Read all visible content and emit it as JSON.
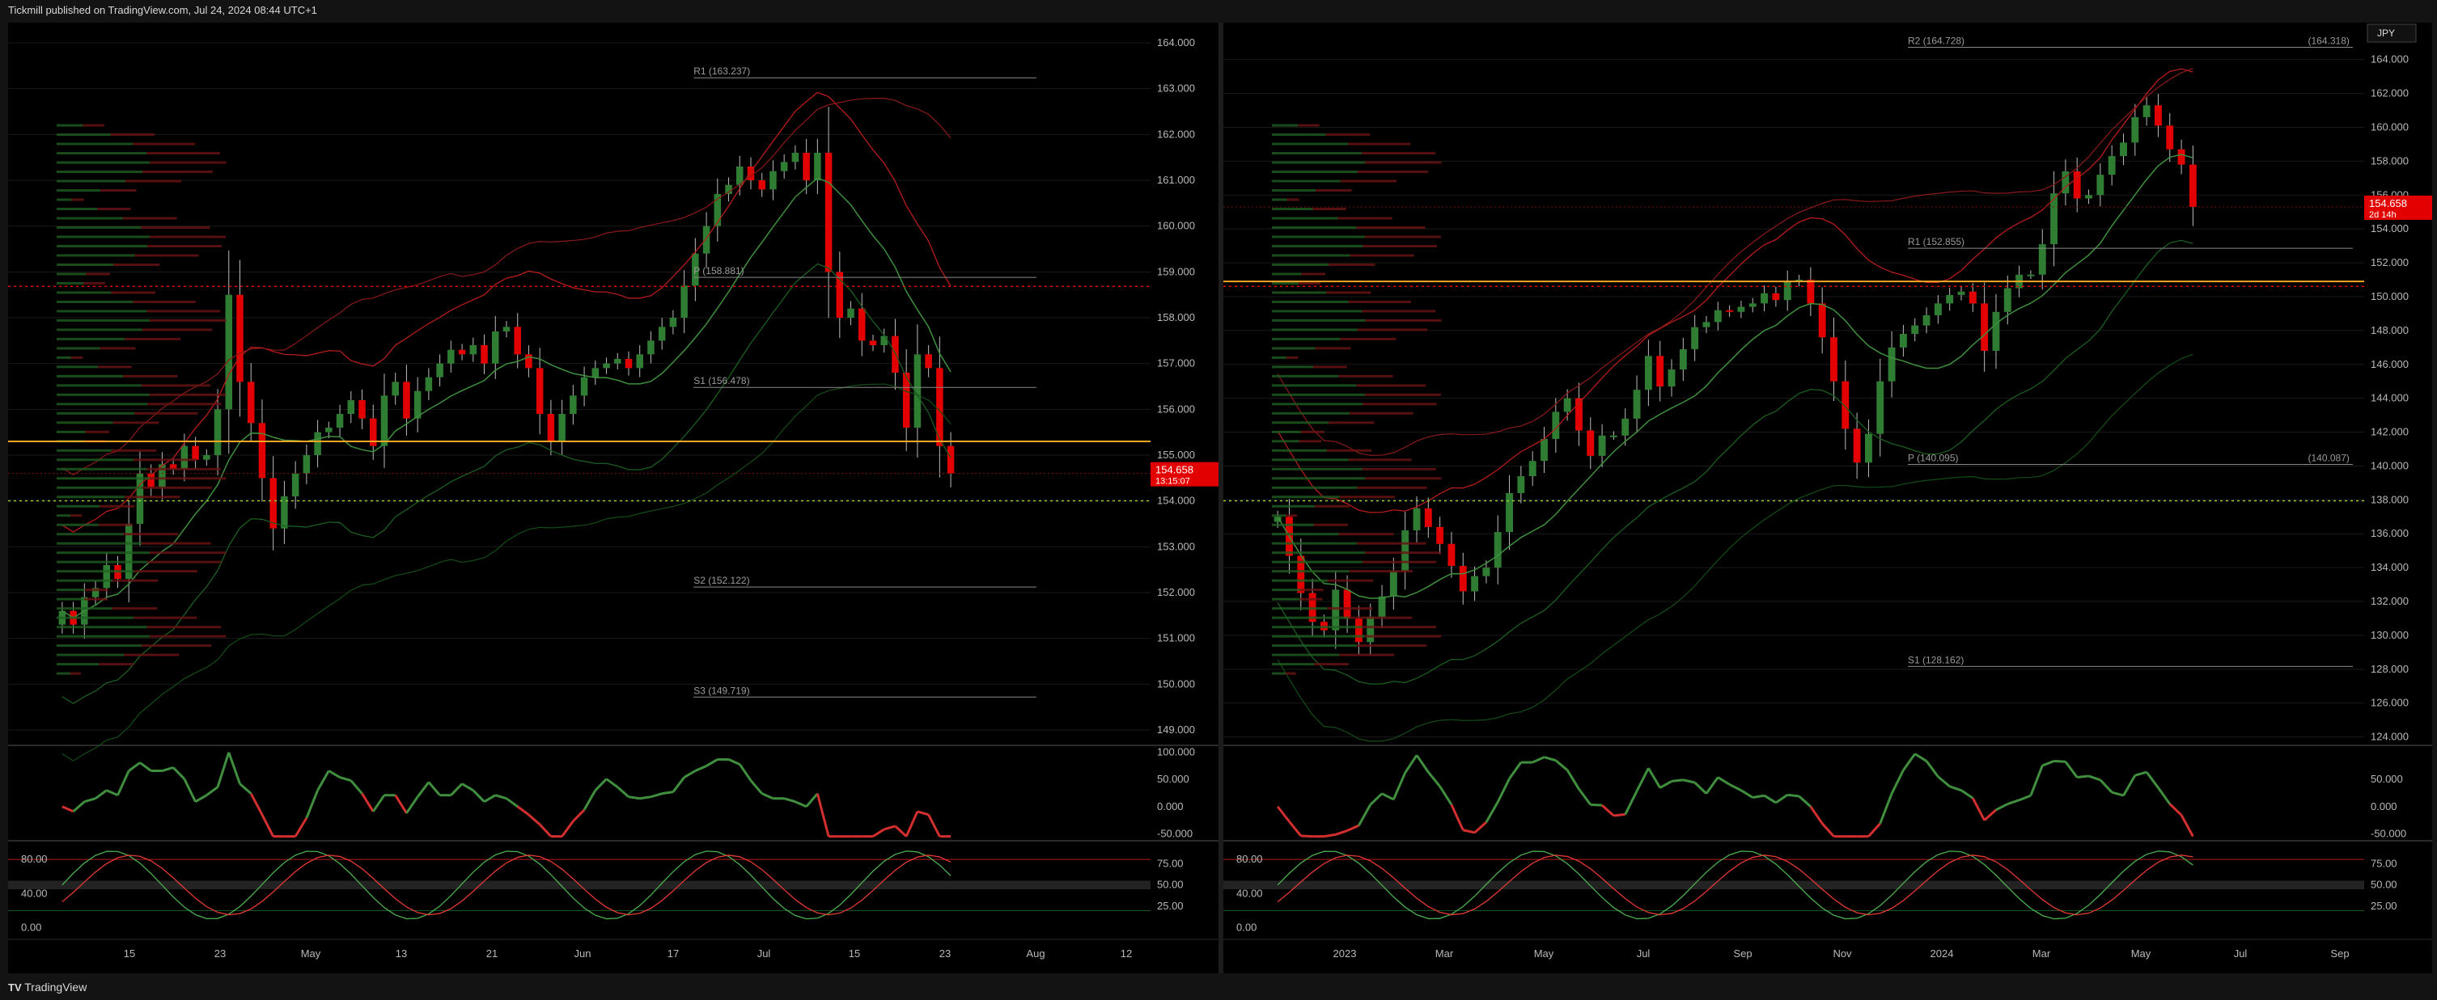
{
  "header": {
    "text": "Tickmill published on TradingView.com, Jul 24, 2024 08:44 UTC+1"
  },
  "footer": {
    "brand": "TradingView"
  },
  "colors": {
    "up": "#2e7d32",
    "down": "#e30000",
    "bg": "#000000",
    "grid": "#1a1a1a",
    "axis_text": "#b8b8b8",
    "orange": "#f5a623",
    "purple": "#9c27b0",
    "blue": "#2f6fdb"
  },
  "chart_data": [
    {
      "type": "candlestick",
      "panel": "left",
      "timeframe_axis_ticks": [
        "15",
        "23",
        "May",
        "13",
        "21",
        "Jun",
        "17",
        "Jul",
        "15",
        "23",
        "Aug",
        "12"
      ],
      "price_axis_ticks": [
        "164.000",
        "163.000",
        "162.000",
        "161.000",
        "160.000",
        "159.000",
        "158.000",
        "157.000",
        "156.000",
        "155.000",
        "154.000",
        "153.000",
        "152.000",
        "151.000",
        "150.000",
        "149.000"
      ],
      "ylim": [
        148.7,
        164.3
      ],
      "last_price": {
        "value": "154.658",
        "countdown": "13:15:07"
      },
      "pivots": [
        {
          "label": "R1 (163.237)",
          "value": 163.237
        },
        {
          "label": "P (158.881)",
          "value": 158.881
        },
        {
          "label": "S1 (156.478)",
          "value": 156.478
        },
        {
          "label": "S2 (152.122)",
          "value": 152.122
        },
        {
          "label": "S3 (149.719)",
          "value": 149.719
        }
      ],
      "closes": [
        151.6,
        151.3,
        151.9,
        152.1,
        152.6,
        152.3,
        153.5,
        154.6,
        154.3,
        154.8,
        154.7,
        155.2,
        154.9,
        155.0,
        156.0,
        158.5,
        156.6,
        155.7,
        154.5,
        153.4,
        154.1,
        154.6,
        155.0,
        155.5,
        155.6,
        155.9,
        156.2,
        155.8,
        155.2,
        156.3,
        156.6,
        155.8,
        156.4,
        156.7,
        157.0,
        157.3,
        157.2,
        157.4,
        157.0,
        157.7,
        157.8,
        157.2,
        156.9,
        155.9,
        155.3,
        155.9,
        156.3,
        156.7,
        156.9,
        157.0,
        157.1,
        156.9,
        157.2,
        157.5,
        157.8,
        158.0,
        158.7,
        159.4,
        160.0,
        160.7,
        160.9,
        161.3,
        161.0,
        160.8,
        161.2,
        161.4,
        161.6,
        161.0,
        161.6,
        159.0,
        158.0,
        158.2,
        157.5,
        157.4,
        157.6,
        156.8,
        155.6,
        157.2,
        156.9,
        155.2,
        154.6
      ],
      "oscillator_1_ticks": [
        "100.000",
        "50.000",
        "0.000",
        "-50.000"
      ],
      "oscillator_2_ticks": [
        "80.00",
        "40.00",
        "0.00",
        "75.00",
        "50.00",
        "25.00"
      ]
    },
    {
      "type": "candlestick",
      "panel": "right",
      "symbol_badge": "JPY",
      "timeframe_axis_ticks": [
        "2023",
        "Mar",
        "May",
        "Jul",
        "Sep",
        "Nov",
        "2024",
        "Mar",
        "May",
        "Jul",
        "Sep"
      ],
      "price_axis_ticks": [
        "164.000",
        "162.000",
        "160.000",
        "158.000",
        "156.000",
        "154.000",
        "152.000",
        "150.000",
        "148.000",
        "146.000",
        "144.000",
        "142.000",
        "140.000",
        "138.000",
        "136.000",
        "134.000",
        "132.000",
        "130.000",
        "128.000",
        "126.000",
        "124.000"
      ],
      "ylim": [
        123.6,
        165.8
      ],
      "last_price": {
        "value": "154.658",
        "countdown": "2d 14h"
      },
      "pivots": [
        {
          "label": "R2 (164.728)",
          "value": 164.728,
          "right_label": "(164.318)"
        },
        {
          "label": "R1 (152.855)",
          "value": 152.855
        },
        {
          "label": "P (140.095)",
          "value": 140.095,
          "right_label": "(140.087)"
        },
        {
          "label": "S1 (128.162)",
          "value": 128.162
        }
      ],
      "closes": [
        137.0,
        134.7,
        132.5,
        130.8,
        130.3,
        132.7,
        131.0,
        129.6,
        131.1,
        132.3,
        133.8,
        136.2,
        137.5,
        136.4,
        135.4,
        134.1,
        132.6,
        133.5,
        134.0,
        136.1,
        138.4,
        139.4,
        140.3,
        141.6,
        143.2,
        144.0,
        142.1,
        140.6,
        141.8,
        141.8,
        142.8,
        144.5,
        146.5,
        144.7,
        145.7,
        146.9,
        148.2,
        148.5,
        149.2,
        149.1,
        149.4,
        149.6,
        150.2,
        149.8,
        150.9,
        151.0,
        149.6,
        147.6,
        145.0,
        142.2,
        140.2,
        141.9,
        145.0,
        147.0,
        147.8,
        148.3,
        148.9,
        149.6,
        150.1,
        150.3,
        149.6,
        146.8,
        149.1,
        150.5,
        151.3,
        151.3,
        153.1,
        156.1,
        157.4,
        155.8,
        156.0,
        157.2,
        158.3,
        159.1,
        160.6,
        161.3,
        160.1,
        158.7,
        157.8,
        155.3
      ],
      "oscillator_1_ticks": [
        "50.000",
        "0.000",
        "-50.000"
      ],
      "oscillator_2_ticks": [
        "80.00",
        "40.00",
        "0.00",
        "75.00",
        "50.00",
        "25.00"
      ]
    }
  ]
}
